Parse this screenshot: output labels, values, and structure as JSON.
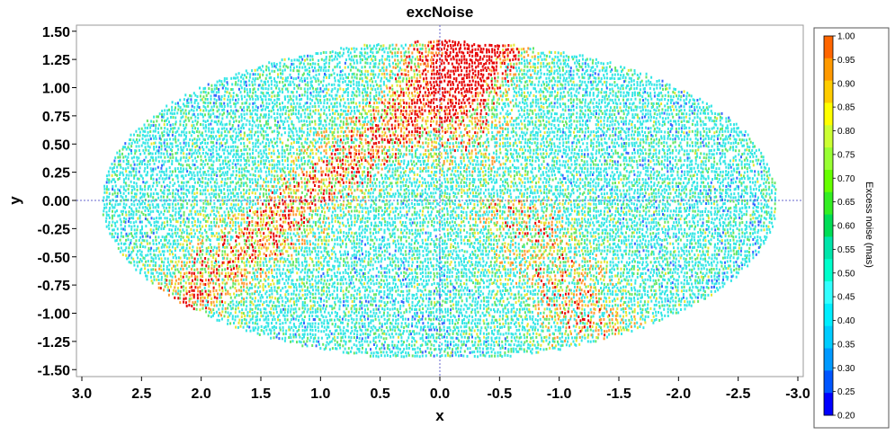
{
  "chart_data": {
    "type": "scatter",
    "projection": "Hammer-Aitoff (all-sky), ellipse",
    "title": "excNoise",
    "xlabel": "x",
    "ylabel": "y",
    "xlim": [
      3.0,
      -3.0
    ],
    "ylim": [
      -1.5,
      1.5
    ],
    "x_ticks": [
      "3.0",
      "2.5",
      "2.0",
      "1.5",
      "1.0",
      "0.5",
      "0.0",
      "-0.5",
      "-1.0",
      "-1.5",
      "-2.0",
      "-2.5",
      "-3.0"
    ],
    "y_ticks": [
      "1.50",
      "1.25",
      "1.00",
      "0.75",
      "0.50",
      "0.25",
      "0.00",
      "-0.25",
      "-0.50",
      "-0.75",
      "-1.00",
      "-1.25",
      "-1.50"
    ],
    "data_extent": {
      "x_half_width": 2.83,
      "y_half_height": 1.41
    },
    "grid": false,
    "zero_lines": true,
    "colorbar": {
      "label": "Excess noise (mas)",
      "min": 0.2,
      "max": 1.0,
      "tick_labels": [
        "1.00",
        "0.95",
        "0.90",
        "0.85",
        "0.80",
        "0.75",
        "0.70",
        "0.65",
        "0.60",
        "0.55",
        "0.50",
        "0.45",
        "0.40",
        "0.35",
        "0.30",
        "0.25",
        "0.20"
      ],
      "colors": [
        "#ff6600",
        "#ff9900",
        "#ffcc00",
        "#ffff00",
        "#ccff33",
        "#99ff33",
        "#66ff00",
        "#33ee22",
        "#00dd55",
        "#00e5aa",
        "#00ffcc",
        "#33ffff",
        "#00eeff",
        "#00ccff",
        "#0099ff",
        "#0055ff",
        "#0000ff"
      ]
    },
    "point_palette": {
      "cyan": "#33e6e6",
      "green": "#66e666",
      "yellow": "#e6e633",
      "orange": "#ff9933",
      "red": "#e60000",
      "blue": "#3366ff"
    }
  }
}
